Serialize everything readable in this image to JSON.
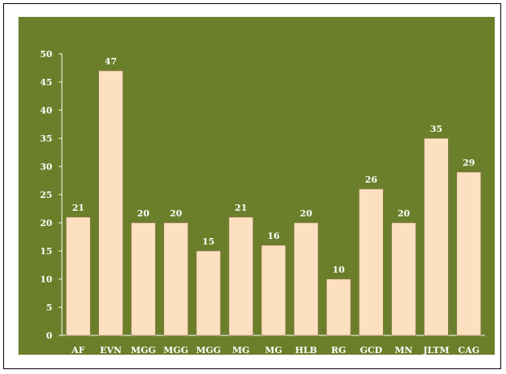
{
  "colors": {
    "background": "#6b7f2a",
    "bar_fill": "#fde0bf",
    "bar_stroke": "#8a6a4a",
    "axis": "#ffffff"
  },
  "chart_data": {
    "type": "bar",
    "title": "",
    "xlabel": "",
    "ylabel": "",
    "categories": [
      "AF",
      "EVN",
      "MGG",
      "MGG",
      "MGG",
      "MG",
      "MG",
      "HLB",
      "RG",
      "GCD",
      "MN",
      "JLTM",
      "CAG"
    ],
    "values": [
      21,
      47,
      20,
      20,
      15,
      21,
      16,
      20,
      10,
      26,
      20,
      35,
      29
    ],
    "data_labels": [
      "21",
      "47",
      "20",
      "20",
      "15",
      "21",
      "16",
      "20",
      "10",
      "26",
      "20",
      "35",
      "29"
    ],
    "ylim": [
      0,
      50
    ],
    "y_ticks": [
      "0",
      "5",
      "10",
      "15",
      "20",
      "25",
      "30",
      "35",
      "40",
      "45",
      "50"
    ],
    "grid": false,
    "legend": "none"
  }
}
